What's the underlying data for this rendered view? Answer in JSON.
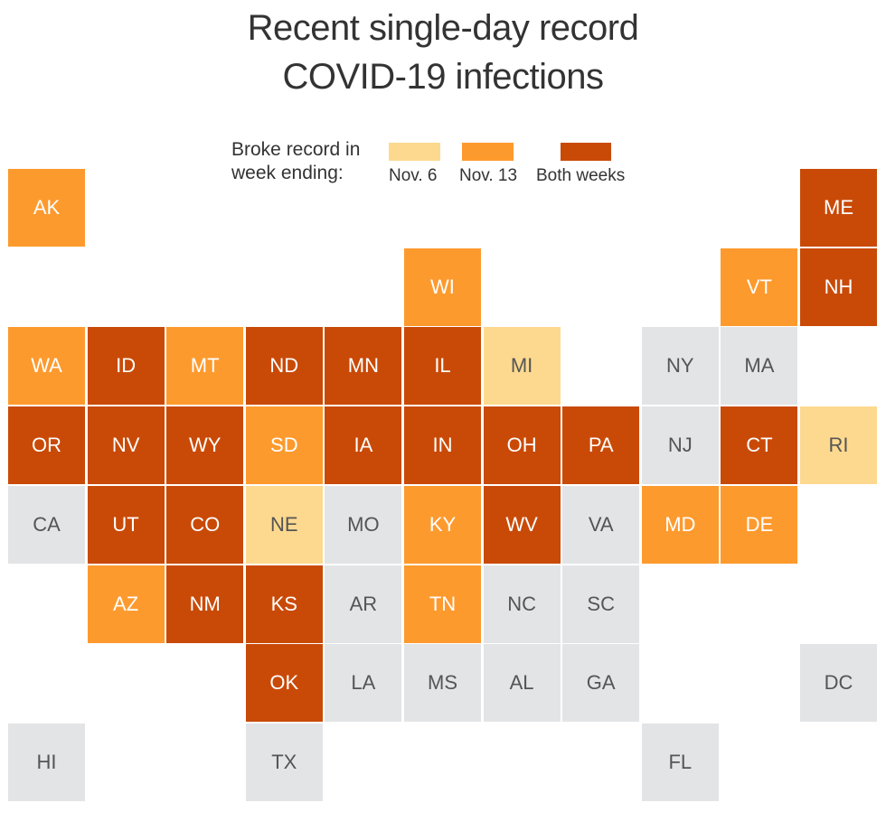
{
  "title": {
    "line1": "Recent single-day record",
    "line2": "COVID-19 infections"
  },
  "legend": {
    "label_line1": "Broke record in",
    "label_line2": "week ending:",
    "items": [
      {
        "label": "Nov. 6",
        "color": "#fdd98f"
      },
      {
        "label": "Nov. 13",
        "color": "#fd9a2e"
      },
      {
        "label": "Both weeks",
        "color": "#c94a07"
      }
    ]
  },
  "colors": {
    "none": "#e3e4e6",
    "nov6": "#fdd98f",
    "nov13": "#fd9a2e",
    "both": "#c94a07",
    "text_dark": "#555555",
    "text_light": "#ffffff"
  },
  "states": [
    {
      "abbr": "AK",
      "row": 0,
      "col": 0,
      "status": "nov13"
    },
    {
      "abbr": "ME",
      "row": 0,
      "col": 10,
      "status": "both"
    },
    {
      "abbr": "WI",
      "row": 1,
      "col": 5,
      "status": "nov13"
    },
    {
      "abbr": "VT",
      "row": 1,
      "col": 9,
      "status": "nov13"
    },
    {
      "abbr": "NH",
      "row": 1,
      "col": 10,
      "status": "both"
    },
    {
      "abbr": "WA",
      "row": 2,
      "col": 0,
      "status": "nov13"
    },
    {
      "abbr": "ID",
      "row": 2,
      "col": 1,
      "status": "both"
    },
    {
      "abbr": "MT",
      "row": 2,
      "col": 2,
      "status": "nov13"
    },
    {
      "abbr": "ND",
      "row": 2,
      "col": 3,
      "status": "both"
    },
    {
      "abbr": "MN",
      "row": 2,
      "col": 4,
      "status": "both"
    },
    {
      "abbr": "IL",
      "row": 2,
      "col": 5,
      "status": "both"
    },
    {
      "abbr": "MI",
      "row": 2,
      "col": 6,
      "status": "nov6"
    },
    {
      "abbr": "NY",
      "row": 2,
      "col": 8,
      "status": "none"
    },
    {
      "abbr": "MA",
      "row": 2,
      "col": 9,
      "status": "none"
    },
    {
      "abbr": "OR",
      "row": 3,
      "col": 0,
      "status": "both"
    },
    {
      "abbr": "NV",
      "row": 3,
      "col": 1,
      "status": "both"
    },
    {
      "abbr": "WY",
      "row": 3,
      "col": 2,
      "status": "both"
    },
    {
      "abbr": "SD",
      "row": 3,
      "col": 3,
      "status": "nov13"
    },
    {
      "abbr": "IA",
      "row": 3,
      "col": 4,
      "status": "both"
    },
    {
      "abbr": "IN",
      "row": 3,
      "col": 5,
      "status": "both"
    },
    {
      "abbr": "OH",
      "row": 3,
      "col": 6,
      "status": "both"
    },
    {
      "abbr": "PA",
      "row": 3,
      "col": 7,
      "status": "both"
    },
    {
      "abbr": "NJ",
      "row": 3,
      "col": 8,
      "status": "none"
    },
    {
      "abbr": "CT",
      "row": 3,
      "col": 9,
      "status": "both"
    },
    {
      "abbr": "RI",
      "row": 3,
      "col": 10,
      "status": "nov6"
    },
    {
      "abbr": "CA",
      "row": 4,
      "col": 0,
      "status": "none"
    },
    {
      "abbr": "UT",
      "row": 4,
      "col": 1,
      "status": "both"
    },
    {
      "abbr": "CO",
      "row": 4,
      "col": 2,
      "status": "both"
    },
    {
      "abbr": "NE",
      "row": 4,
      "col": 3,
      "status": "nov6"
    },
    {
      "abbr": "MO",
      "row": 4,
      "col": 4,
      "status": "none"
    },
    {
      "abbr": "KY",
      "row": 4,
      "col": 5,
      "status": "nov13"
    },
    {
      "abbr": "WV",
      "row": 4,
      "col": 6,
      "status": "both"
    },
    {
      "abbr": "VA",
      "row": 4,
      "col": 7,
      "status": "none"
    },
    {
      "abbr": "MD",
      "row": 4,
      "col": 8,
      "status": "nov13"
    },
    {
      "abbr": "DE",
      "row": 4,
      "col": 9,
      "status": "nov13"
    },
    {
      "abbr": "AZ",
      "row": 5,
      "col": 1,
      "status": "nov13"
    },
    {
      "abbr": "NM",
      "row": 5,
      "col": 2,
      "status": "both"
    },
    {
      "abbr": "KS",
      "row": 5,
      "col": 3,
      "status": "both"
    },
    {
      "abbr": "AR",
      "row": 5,
      "col": 4,
      "status": "none"
    },
    {
      "abbr": "TN",
      "row": 5,
      "col": 5,
      "status": "nov13"
    },
    {
      "abbr": "NC",
      "row": 5,
      "col": 6,
      "status": "none"
    },
    {
      "abbr": "SC",
      "row": 5,
      "col": 7,
      "status": "none"
    },
    {
      "abbr": "OK",
      "row": 6,
      "col": 3,
      "status": "both"
    },
    {
      "abbr": "LA",
      "row": 6,
      "col": 4,
      "status": "none"
    },
    {
      "abbr": "MS",
      "row": 6,
      "col": 5,
      "status": "none"
    },
    {
      "abbr": "AL",
      "row": 6,
      "col": 6,
      "status": "none"
    },
    {
      "abbr": "GA",
      "row": 6,
      "col": 7,
      "status": "none"
    },
    {
      "abbr": "DC",
      "row": 6,
      "col": 10,
      "status": "none"
    },
    {
      "abbr": "HI",
      "row": 7,
      "col": 0,
      "status": "none"
    },
    {
      "abbr": "TX",
      "row": 7,
      "col": 3,
      "status": "none"
    },
    {
      "abbr": "FL",
      "row": 7,
      "col": 8,
      "status": "none"
    }
  ]
}
